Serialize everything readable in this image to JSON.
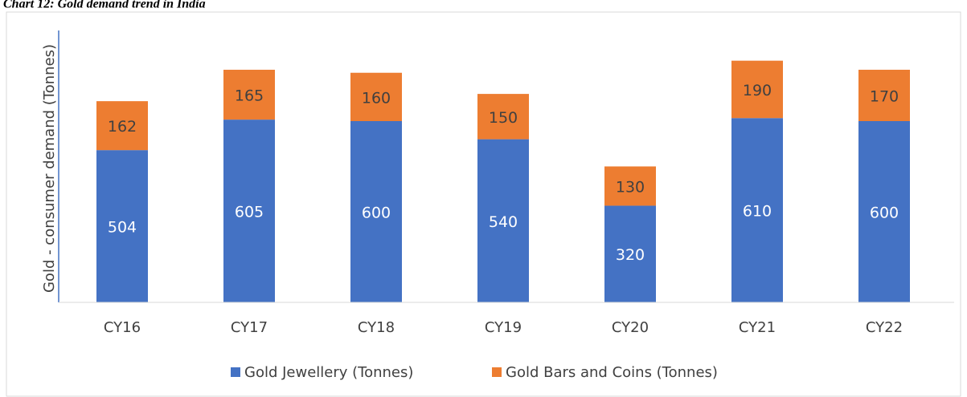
{
  "chart_data": {
    "type": "stacked_bar",
    "title": "Chart 12: Gold demand trend in India",
    "y_label": "Gold  - consumer demand (Tonnes)",
    "categories": [
      "CY16",
      "CY17",
      "CY18",
      "CY19",
      "CY20",
      "CY21",
      "CY22"
    ],
    "series": [
      {
        "name": "Gold Jewellery (Tonnes)",
        "color": "#4472c4",
        "values": [
          504,
          605,
          600,
          540,
          320,
          610,
          600
        ]
      },
      {
        "name": "Gold Bars and Coins (Tonnes)",
        "color": "#ed7d31",
        "values": [
          162,
          165,
          160,
          150,
          130,
          190,
          170
        ]
      }
    ],
    "ylim": [
      0,
      900
    ],
    "legend": "bottom"
  }
}
